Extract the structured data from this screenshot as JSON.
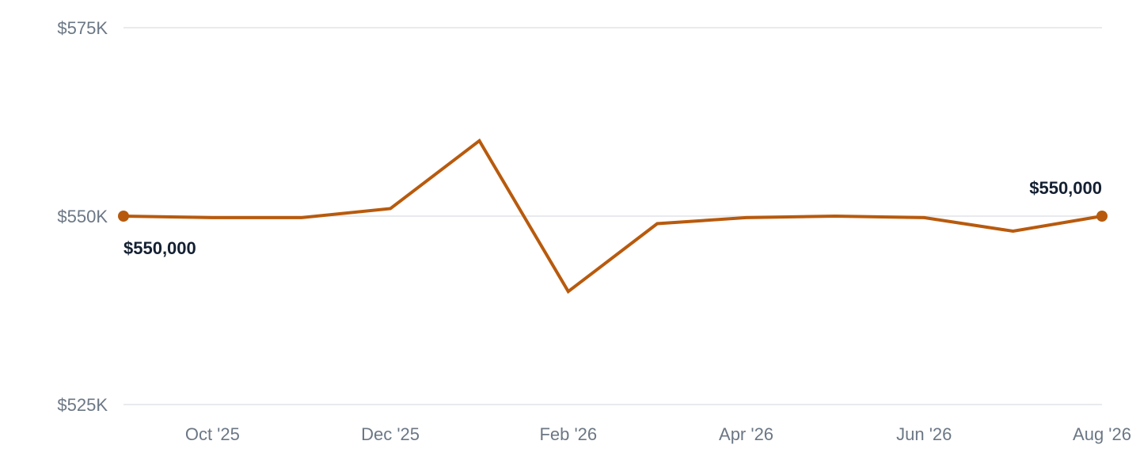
{
  "chart_data": {
    "type": "line",
    "title": "",
    "xlabel": "",
    "ylabel": "",
    "x": [
      "2025-09",
      "2025-10",
      "2025-11",
      "2025-12",
      "2026-01",
      "2026-02",
      "2026-03",
      "2026-04",
      "2026-05",
      "2026-06",
      "2026-07",
      "2026-08"
    ],
    "series": [
      {
        "values": [
          550000,
          549800,
          549800,
          551000,
          560000,
          540000,
          549000,
          549800,
          550000,
          549800,
          548000,
          550000
        ]
      }
    ],
    "ylim": [
      525000,
      575000
    ],
    "y_ticks": [
      {
        "value": 575000,
        "label": "$575K"
      },
      {
        "value": 550000,
        "label": "$550K"
      },
      {
        "value": 525000,
        "label": "$525K"
      }
    ],
    "x_ticks": [
      {
        "label": "Oct '25"
      },
      {
        "label": "Dec '25"
      },
      {
        "label": "Feb '26"
      },
      {
        "label": "Apr '26"
      },
      {
        "label": "Jun '26"
      },
      {
        "label": "Aug '26"
      }
    ],
    "data_labels": [
      {
        "label": "$550,000"
      },
      {
        "label": "$550,000"
      }
    ],
    "grid": true,
    "legend": "none",
    "line_color": "#b85a0d",
    "grid_color": "#e1e4e8",
    "tick_color": "#6b7785",
    "label_color": "#142032"
  }
}
